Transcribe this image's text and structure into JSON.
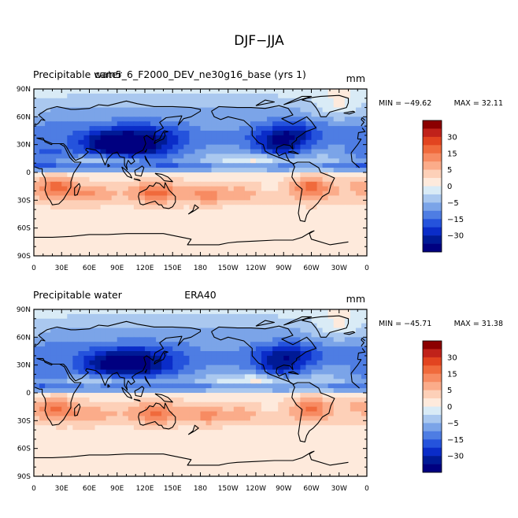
{
  "figure": {
    "title": "DJF−JJA"
  },
  "palette": [
    "#8b0000",
    "#c0221a",
    "#e24420",
    "#f06a3c",
    "#f78b62",
    "#fbac8a",
    "#fdd0b8",
    "#feeadc",
    "#d9ebf6",
    "#aac8ef",
    "#7ba4e8",
    "#4e7de3",
    "#2553dc",
    "#0a2cc8",
    "#001a96",
    "#000080"
  ],
  "chart_data": [
    {
      "type": "heatmap",
      "variable": "Precipitable water",
      "case": "cam5_6_F2000_DEV_ne30g16_base (yrs 1)",
      "units": "mm",
      "min_label": "MIN = −49.62",
      "max_label": "MAX =  32.11",
      "min": -49.62,
      "max": 32.11,
      "x_range": [
        0,
        360
      ],
      "y_range": [
        -90,
        90
      ],
      "xticks": [
        "0",
        "30E",
        "60E",
        "90E",
        "120E",
        "150E",
        "180",
        "150W",
        "120W",
        "90W",
        "60W",
        "30W",
        "0"
      ],
      "yticks": [
        "90N",
        "60N",
        "30N",
        "0",
        "30S",
        "60S",
        "90S"
      ],
      "colorbar_labels": [
        "30",
        "15",
        "5",
        "0",
        "−5",
        "−15",
        "−30"
      ]
    },
    {
      "type": "heatmap",
      "variable": "Precipitable water",
      "case": "ERA40",
      "units": "mm",
      "min_label": "MIN = −45.71",
      "max_label": "MAX =  31.38",
      "min": -45.71,
      "max": 31.38,
      "x_range": [
        0,
        360
      ],
      "y_range": [
        -90,
        90
      ],
      "xticks": [
        "0",
        "30E",
        "60E",
        "90E",
        "120E",
        "150E",
        "180",
        "150W",
        "120W",
        "90W",
        "60W",
        "30W",
        "0"
      ],
      "yticks": [
        "90N",
        "60N",
        "30N",
        "0",
        "30S",
        "60S",
        "90S"
      ],
      "colorbar_labels": [
        "30",
        "15",
        "5",
        "0",
        "−5",
        "−15",
        "−30"
      ]
    }
  ]
}
